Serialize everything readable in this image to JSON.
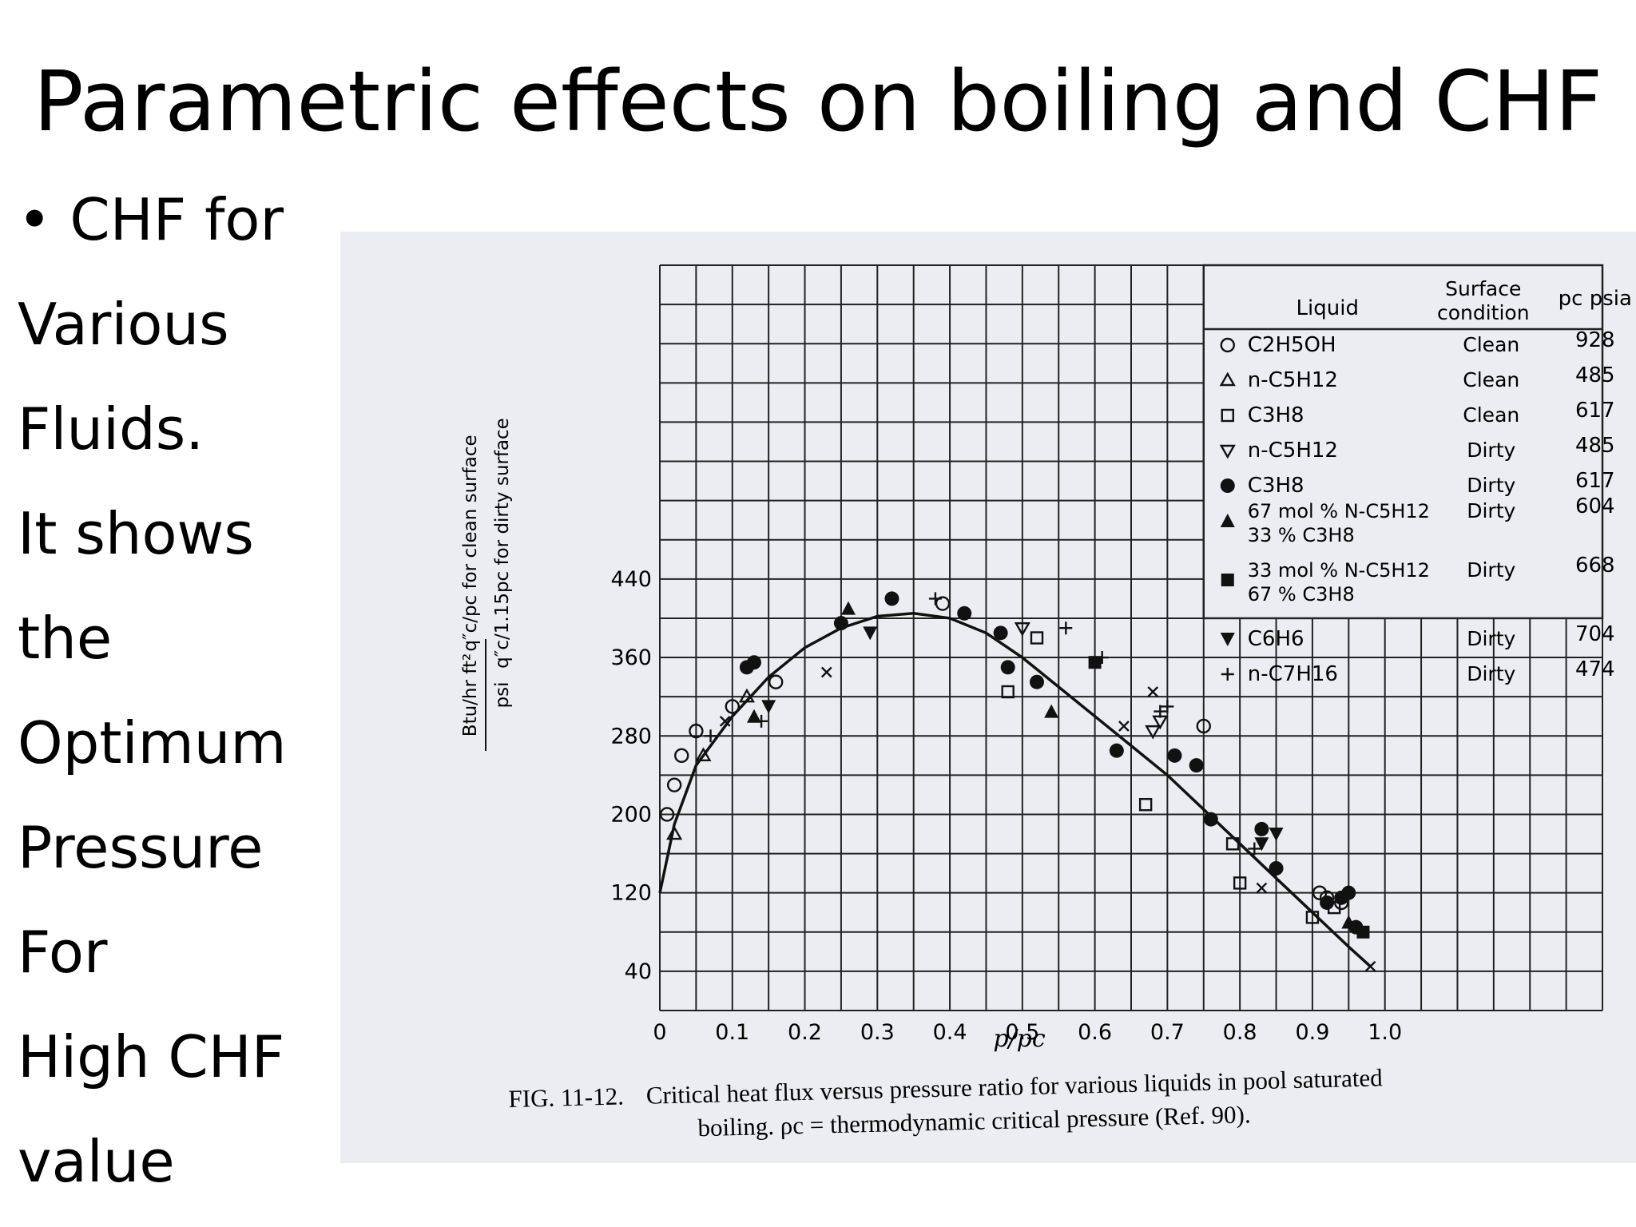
{
  "slide": {
    "title": "Parametric effects on boiling and CHF",
    "bullet_lines": [
      "•  CHF for",
      "Various",
      "Fluids.",
      "It shows",
      " the",
      "Optimum",
      "Pressure",
      "For",
      "High CHF",
      "value"
    ]
  },
  "caption": {
    "label": "FIG. 11-12.",
    "line1": "Critical heat flux versus pressure ratio for various liquids in pool saturated",
    "line2": "boiling.   ρc = thermodynamic critical pressure (Ref. 90)."
  },
  "chart_data": {
    "type": "scatter",
    "xlabel": "p/pc",
    "ylabel_top": "Btu/hr ft²",
    "ylabel_bottom": "psi",
    "ylabel_clean": "q″c/pc  for clean surface",
    "ylabel_dirty": "q″c/1.15pc  for dirty surface",
    "xlim": [
      0,
      1.3
    ],
    "ylim": [
      0,
      760
    ],
    "x_ticks": [
      "0",
      "0.1",
      "0.2",
      "0.3",
      "0.4",
      "0.5",
      "0.6",
      "0.7",
      "0.8",
      "0.9",
      "1.0"
    ],
    "y_ticks": [
      "40",
      "120",
      "200",
      "280",
      "360",
      "440"
    ],
    "legend_position": "top-right",
    "legend_headers": {
      "liquid": "Liquid",
      "surface": "Surface condition",
      "pc": "pc psia"
    },
    "series": [
      {
        "name": "C2H5OH",
        "marker": "open-circle",
        "surface": "Clean",
        "pc": "928",
        "points": [
          [
            0.01,
            200
          ],
          [
            0.02,
            230
          ],
          [
            0.03,
            260
          ],
          [
            0.05,
            285
          ],
          [
            0.1,
            310
          ],
          [
            0.16,
            335
          ],
          [
            0.39,
            415
          ],
          [
            0.75,
            290
          ],
          [
            0.91,
            120
          ],
          [
            0.92,
            115
          ],
          [
            0.94,
            110
          ]
        ]
      },
      {
        "name": "n-C5H12",
        "marker": "open-triangle-up",
        "surface": "Clean",
        "pc": "485",
        "points": [
          [
            0.02,
            180
          ],
          [
            0.06,
            260
          ],
          [
            0.12,
            320
          ]
        ]
      },
      {
        "name": "C3H8",
        "marker": "open-square",
        "surface": "Clean",
        "pc": "617",
        "points": [
          [
            0.48,
            325
          ],
          [
            0.52,
            380
          ],
          [
            0.67,
            210
          ],
          [
            0.79,
            170
          ],
          [
            0.8,
            130
          ],
          [
            0.9,
            95
          ],
          [
            0.93,
            105
          ]
        ]
      },
      {
        "name": "n-C5H12",
        "marker": "open-triangle-down",
        "surface": "Dirty",
        "pc": "485",
        "points": [
          [
            0.5,
            390
          ],
          [
            0.68,
            285
          ],
          [
            0.69,
            295
          ]
        ]
      },
      {
        "name": "C3H8",
        "marker": "filled-circle",
        "surface": "Dirty",
        "pc": "617",
        "points": [
          [
            0.12,
            350
          ],
          [
            0.13,
            355
          ],
          [
            0.25,
            395
          ],
          [
            0.32,
            420
          ],
          [
            0.42,
            405
          ],
          [
            0.47,
            385
          ],
          [
            0.48,
            350
          ],
          [
            0.52,
            335
          ],
          [
            0.63,
            265
          ],
          [
            0.71,
            260
          ],
          [
            0.74,
            250
          ],
          [
            0.76,
            195
          ],
          [
            0.83,
            185
          ],
          [
            0.85,
            145
          ],
          [
            0.92,
            110
          ],
          [
            0.94,
            115
          ],
          [
            0.95,
            120
          ],
          [
            0.96,
            85
          ]
        ]
      },
      {
        "name": "67 mol % N-C5H12 33 % C3H8",
        "marker": "filled-triangle-up",
        "surface": "Dirty",
        "pc": "604",
        "points": [
          [
            0.26,
            410
          ],
          [
            0.54,
            305
          ],
          [
            0.13,
            300
          ],
          [
            0.95,
            90
          ]
        ]
      },
      {
        "name": "33 mol % N-C5H12 67 % C3H8",
        "marker": "filled-square",
        "surface": "Dirty",
        "pc": "668",
        "points": [
          [
            0.6,
            355
          ],
          [
            0.97,
            80
          ]
        ]
      },
      {
        "name": "C6H6",
        "marker": "filled-triangle-down",
        "surface": "Dirty",
        "pc": "704",
        "points": [
          [
            0.29,
            385
          ],
          [
            0.15,
            310
          ],
          [
            0.83,
            170
          ],
          [
            0.85,
            180
          ]
        ]
      },
      {
        "name": "n-C7H16",
        "marker": "plus",
        "surface": "Dirty",
        "pc": "474",
        "points": [
          [
            0.38,
            420
          ],
          [
            0.56,
            390
          ],
          [
            0.61,
            360
          ],
          [
            0.07,
            280
          ],
          [
            0.14,
            295
          ],
          [
            0.69,
            305
          ],
          [
            0.7,
            310
          ],
          [
            0.82,
            165
          ]
        ]
      },
      {
        "name": "",
        "marker": "cross",
        "points": [
          [
            0.23,
            345
          ],
          [
            0.64,
            290
          ],
          [
            0.68,
            325
          ],
          [
            0.83,
            125
          ],
          [
            0.98,
            45
          ],
          [
            0.09,
            295
          ]
        ]
      }
    ],
    "curve": [
      [
        0,
        120
      ],
      [
        0.02,
        190
      ],
      [
        0.05,
        250
      ],
      [
        0.1,
        300
      ],
      [
        0.15,
        340
      ],
      [
        0.2,
        370
      ],
      [
        0.25,
        390
      ],
      [
        0.3,
        402
      ],
      [
        0.35,
        405
      ],
      [
        0.4,
        400
      ],
      [
        0.45,
        385
      ],
      [
        0.5,
        360
      ],
      [
        0.55,
        330
      ],
      [
        0.6,
        300
      ],
      [
        0.65,
        270
      ],
      [
        0.7,
        240
      ],
      [
        0.75,
        205
      ],
      [
        0.8,
        170
      ],
      [
        0.85,
        135
      ],
      [
        0.9,
        100
      ],
      [
        0.95,
        65
      ],
      [
        0.98,
        45
      ]
    ]
  }
}
